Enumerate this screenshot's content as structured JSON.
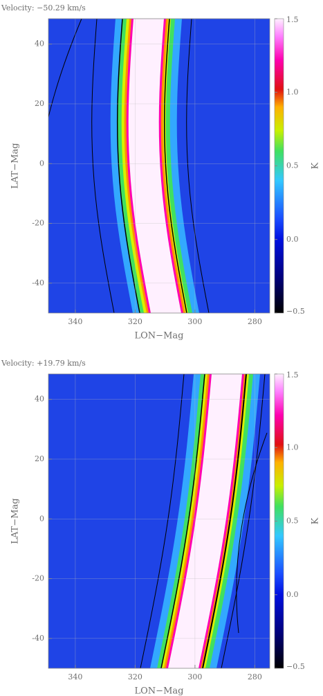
{
  "chart_data": [
    {
      "type": "heatmap",
      "title": "Velocity: −50.29 km/s",
      "x_label": "LON−Mag",
      "y_label": "LAT−Mag",
      "xlim": [
        349,
        275
      ],
      "xticks": [
        340,
        320,
        300,
        280
      ],
      "ylim": [
        -50,
        48.5
      ],
      "yticks": [
        -40,
        -20,
        0,
        20,
        40
      ],
      "colorbar_label": "K",
      "clim": [
        -0.5,
        1.5
      ],
      "cticks": [
        {
          "value": -0.5,
          "label": "−0.5"
        },
        {
          "value": 0,
          "label": "0.0"
        },
        0.5,
        {
          "value": 1,
          "label": "1.0"
        },
        1.5
      ],
      "grid": true
    },
    {
      "type": "heatmap",
      "title": "Velocity: +19.79 km/s",
      "x_label": "LON−Mag",
      "y_label": "LAT−Mag",
      "xlim": [
        349,
        275
      ],
      "xticks": [
        340,
        320,
        300,
        280
      ],
      "ylim": [
        -50,
        48.5
      ],
      "yticks": [
        -40,
        -20,
        0,
        20,
        40
      ],
      "colorbar_label": "K",
      "clim": [
        -0.5,
        1.5
      ],
      "cticks": [
        {
          "value": -0.5,
          "label": "−0.5"
        },
        {
          "value": 0,
          "label": "0.0"
        },
        0.5,
        {
          "value": 1,
          "label": "1.0"
        },
        1.5
      ],
      "grid": true
    }
  ]
}
